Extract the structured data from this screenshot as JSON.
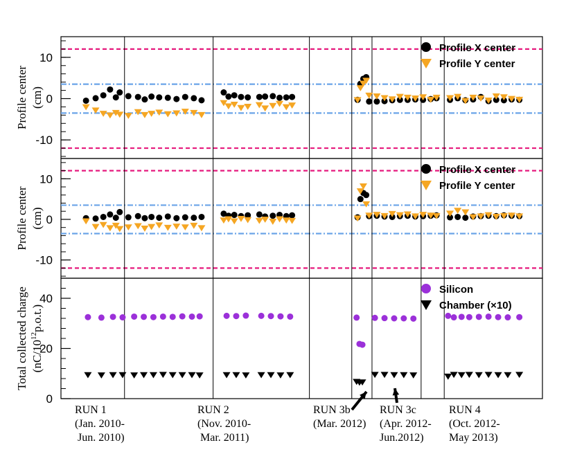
{
  "chart_data": [
    {
      "type": "scatter",
      "ylabel_lines": [
        "Profile center",
        "(cm)"
      ],
      "ylim": [
        -14.5,
        15
      ],
      "yticks": [
        -10,
        0,
        10
      ],
      "ytick_labels": [
        "-10",
        "0",
        "10"
      ],
      "reference_lines": [
        {
          "y": 12,
          "color": "#e6197d",
          "style": "dashed"
        },
        {
          "y": -12,
          "color": "#e6197d",
          "style": "dashed"
        },
        {
          "y": 3.5,
          "color": "#6aa3e8",
          "style": "dashdot"
        },
        {
          "y": -3.5,
          "color": "#6aa3e8",
          "style": "dashdot"
        }
      ],
      "legend": {
        "position": "top-right"
      },
      "series": [
        {
          "name": "Profile X center",
          "marker": "circle",
          "color": "#000000",
          "x": [
            1.3,
            1.8,
            2.2,
            2.55,
            2.85,
            3.05,
            3.5,
            4.0,
            4.35,
            4.7,
            5.1,
            5.55,
            6.0,
            6.45,
            6.9,
            7.3,
            8.45,
            8.7,
            9.0,
            9.35,
            9.7,
            10.3,
            10.6,
            11.0,
            11.35,
            11.7,
            12.0,
            15.4,
            15.55,
            15.7,
            15.85,
            16.0,
            16.4,
            16.8,
            17.2,
            17.6,
            18.0,
            18.4,
            18.8,
            19.2,
            19.5,
            20.2,
            20.6,
            21.0,
            21.4,
            21.8,
            22.2,
            22.6,
            23.0,
            23.4,
            23.8
          ],
          "y": [
            -0.5,
            0.1,
            0.8,
            2.2,
            0.3,
            1.5,
            0.6,
            0.4,
            -0.2,
            0.5,
            0.3,
            0.2,
            -0.1,
            0.4,
            0.1,
            -0.4,
            1.5,
            0.5,
            0.8,
            0.4,
            0.3,
            0.4,
            0.5,
            0.6,
            0.2,
            0.3,
            0.4,
            -0.3,
            3.6,
            4.8,
            5.2,
            -0.7,
            -0.7,
            -0.6,
            -0.4,
            -0.3,
            -0.3,
            -0.2,
            -0.3,
            -0.1,
            0.1,
            -0.3,
            0.1,
            -0.4,
            -0.2,
            0.4,
            -0.6,
            -0.3,
            -0.4,
            -0.2,
            -0.3
          ]
        },
        {
          "name": "Profile Y center",
          "marker": "triangle-down",
          "color": "#f5a623",
          "x": [
            1.3,
            1.8,
            2.2,
            2.55,
            2.85,
            3.05,
            3.5,
            4.0,
            4.35,
            4.7,
            5.1,
            5.55,
            6.0,
            6.45,
            6.9,
            7.3,
            8.45,
            8.7,
            9.0,
            9.35,
            9.7,
            10.3,
            10.6,
            11.0,
            11.35,
            11.7,
            12.0,
            15.4,
            15.55,
            15.7,
            15.85,
            16.0,
            16.4,
            16.8,
            17.2,
            17.6,
            18.0,
            18.4,
            18.8,
            19.2,
            19.5,
            20.2,
            20.6,
            21.0,
            21.4,
            21.8,
            22.2,
            22.6,
            23.0,
            23.4,
            23.8
          ],
          "y": [
            -2.0,
            -2.8,
            -3.6,
            -4.0,
            -3.4,
            -3.8,
            -4.1,
            -3.2,
            -3.9,
            -3.6,
            -3.3,
            -3.7,
            -3.5,
            -3.1,
            -3.4,
            -3.9,
            -1.0,
            -1.8,
            -1.4,
            -2.2,
            -1.9,
            -1.5,
            -2.3,
            -1.7,
            -1.2,
            -2.0,
            -1.6,
            -0.3,
            2.6,
            3.7,
            4.4,
            0.8,
            0.6,
            0.2,
            -0.1,
            0.5,
            0.3,
            0.1,
            0.4,
            -0.2,
            0.3,
            0.2,
            0.5,
            -0.5,
            0.3,
            0.1,
            -0.4,
            0.6,
            0.4,
            0.0,
            -0.2
          ]
        }
      ]
    },
    {
      "type": "scatter",
      "ylabel_lines": [
        "Profile center",
        "(cm)"
      ],
      "ylim": [
        -14.5,
        15
      ],
      "yticks": [
        -10,
        0,
        10
      ],
      "ytick_labels": [
        "-10",
        "0",
        "10"
      ],
      "reference_lines": [
        {
          "y": 12,
          "color": "#e6197d",
          "style": "dashed"
        },
        {
          "y": -12,
          "color": "#e6197d",
          "style": "dashed"
        },
        {
          "y": 3.5,
          "color": "#6aa3e8",
          "style": "dashdot"
        },
        {
          "y": -3.5,
          "color": "#6aa3e8",
          "style": "dashdot"
        }
      ],
      "legend": {
        "position": "top-right"
      },
      "series": [
        {
          "name": "Profile X center",
          "marker": "circle",
          "color": "#000000",
          "x": [
            1.3,
            1.8,
            2.2,
            2.55,
            2.85,
            3.05,
            3.5,
            4.0,
            4.35,
            4.7,
            5.1,
            5.55,
            6.0,
            6.45,
            6.9,
            7.3,
            8.45,
            8.7,
            9.0,
            9.35,
            9.7,
            10.3,
            10.6,
            11.0,
            11.35,
            11.7,
            12.0,
            15.4,
            15.55,
            15.7,
            15.85,
            16.0,
            16.4,
            16.8,
            17.2,
            17.6,
            18.0,
            18.4,
            18.8,
            19.2,
            19.5,
            20.2,
            20.6,
            21.0,
            21.4,
            21.8,
            22.2,
            22.6,
            23.0,
            23.4,
            23.8
          ],
          "y": [
            0.3,
            0.2,
            0.6,
            1.2,
            0.4,
            1.8,
            0.5,
            0.8,
            0.3,
            0.6,
            0.4,
            0.7,
            0.3,
            0.5,
            0.4,
            0.6,
            1.4,
            0.9,
            1.1,
            0.8,
            1.0,
            1.2,
            0.7,
            0.9,
            1.1,
            0.8,
            1.0,
            0.5,
            5.0,
            6.5,
            6.0,
            0.8,
            0.9,
            0.7,
            0.6,
            0.8,
            0.9,
            0.7,
            0.8,
            0.9,
            1.0,
            0.5,
            0.6,
            0.4,
            0.7,
            0.8,
            0.9,
            0.8,
            1.0,
            0.9,
            0.8
          ]
        },
        {
          "name": "Profile Y center",
          "marker": "triangle-down",
          "color": "#f5a623",
          "x": [
            1.3,
            1.8,
            2.2,
            2.55,
            2.85,
            3.05,
            3.5,
            4.0,
            4.35,
            4.7,
            5.1,
            5.55,
            6.0,
            6.45,
            6.9,
            7.3,
            8.45,
            8.7,
            9.0,
            9.35,
            9.7,
            10.3,
            10.6,
            11.0,
            11.35,
            11.7,
            12.0,
            15.4,
            15.55,
            15.7,
            15.85,
            16.0,
            16.4,
            16.8,
            17.2,
            17.6,
            18.0,
            18.4,
            18.8,
            19.2,
            19.5,
            20.2,
            20.6,
            21.0,
            21.4,
            21.8,
            22.2,
            22.6,
            23.0,
            23.4,
            23.8
          ],
          "y": [
            -0.4,
            -1.8,
            -1.3,
            -2.1,
            -1.5,
            -2.3,
            -1.9,
            -1.6,
            -2.2,
            -1.8,
            -1.4,
            -2.0,
            -1.7,
            -1.9,
            -1.5,
            -2.1,
            -0.2,
            0.1,
            -0.4,
            0.2,
            -0.1,
            -0.3,
            0.0,
            -0.5,
            0.1,
            -0.2,
            -0.3,
            0.3,
            7.0,
            8.2,
            3.8,
            1.0,
            1.2,
            0.9,
            1.4,
            1.1,
            1.3,
            0.8,
            1.2,
            1.0,
            0.9,
            1.5,
            2.2,
            1.8,
            0.6,
            0.8,
            1.1,
            0.7,
            0.9,
            1.0,
            0.8
          ]
        }
      ]
    },
    {
      "type": "scatter",
      "ylabel_lines": [
        "Total collected charge",
        "(nC/10^12 p.o.t.)"
      ],
      "ylim": [
        0,
        48
      ],
      "yticks": [
        0,
        20,
        40
      ],
      "ytick_labels": [
        "0",
        "20",
        "40"
      ],
      "legend": {
        "position": "top-right"
      },
      "series": [
        {
          "name": "Silicon",
          "marker": "circle",
          "color": "#9b30d9",
          "x": [
            1.4,
            2.1,
            2.7,
            3.2,
            3.8,
            4.3,
            4.8,
            5.3,
            5.8,
            6.3,
            6.8,
            7.2,
            8.6,
            9.1,
            9.6,
            10.4,
            10.9,
            11.4,
            11.9,
            15.35,
            15.5,
            15.65,
            16.3,
            16.8,
            17.3,
            17.8,
            18.3,
            20.1,
            20.4,
            20.8,
            21.2,
            21.7,
            22.2,
            22.7,
            23.2,
            23.8
          ],
          "y": [
            32.5,
            32.3,
            32.6,
            32.4,
            32.7,
            32.6,
            32.5,
            32.7,
            32.6,
            32.8,
            32.7,
            32.8,
            33.0,
            32.9,
            33.1,
            33.0,
            32.9,
            32.8,
            32.7,
            32.3,
            21.8,
            21.5,
            32.2,
            32.1,
            32.0,
            32.0,
            31.9,
            33.0,
            32.4,
            32.6,
            32.5,
            32.6,
            32.7,
            32.5,
            32.4,
            32.5
          ]
        },
        {
          "name": "Chamber (×10)",
          "marker": "triangle-down",
          "color": "#000000",
          "x": [
            1.4,
            2.1,
            2.7,
            3.2,
            3.8,
            4.3,
            4.8,
            5.3,
            5.8,
            6.3,
            6.8,
            7.2,
            8.6,
            9.1,
            9.6,
            10.4,
            10.9,
            11.4,
            11.9,
            15.35,
            15.5,
            15.65,
            16.3,
            16.8,
            17.3,
            17.8,
            18.3,
            20.1,
            20.4,
            20.8,
            21.2,
            21.7,
            22.2,
            22.7,
            23.2,
            23.8
          ],
          "y": [
            9.5,
            9.4,
            9.5,
            9.5,
            9.4,
            9.5,
            9.5,
            9.6,
            9.5,
            9.5,
            9.5,
            9.4,
            9.5,
            9.5,
            9.4,
            9.5,
            9.5,
            9.4,
            9.5,
            6.8,
            6.5,
            6.6,
            9.6,
            9.6,
            9.5,
            9.5,
            9.4,
            8.9,
            9.6,
            9.5,
            9.6,
            9.5,
            9.6,
            9.5,
            9.5,
            9.6
          ]
        }
      ]
    }
  ],
  "x_range": [
    0,
    25
  ],
  "run_separators": [
    3.3,
    7.9,
    12.9,
    15.1,
    16.15,
    18.7,
    19.9
  ],
  "runs": [
    {
      "label": "RUN 1",
      "period_lines": [
        "(Jan. 2010-",
        " Jun. 2010)"
      ]
    },
    {
      "label": "RUN 2",
      "period_lines": [
        "(Nov. 2010-",
        " Mar. 2011)"
      ]
    },
    {
      "label": "RUN 3b",
      "period_lines": [
        "(Mar. 2012)"
      ]
    },
    {
      "label": "RUN 3c",
      "period_lines": [
        "(Apr. 2012-",
        "Jun.2012)"
      ]
    },
    {
      "label": "RUN 4",
      "period_lines": [
        "(Oct. 2012-",
        "May 2013)"
      ]
    }
  ],
  "colors": {
    "axis": "#000000",
    "magenta_line": "#e6197d",
    "blue_line": "#6aa3e8",
    "orange": "#f5a623",
    "purple": "#9b30d9"
  }
}
